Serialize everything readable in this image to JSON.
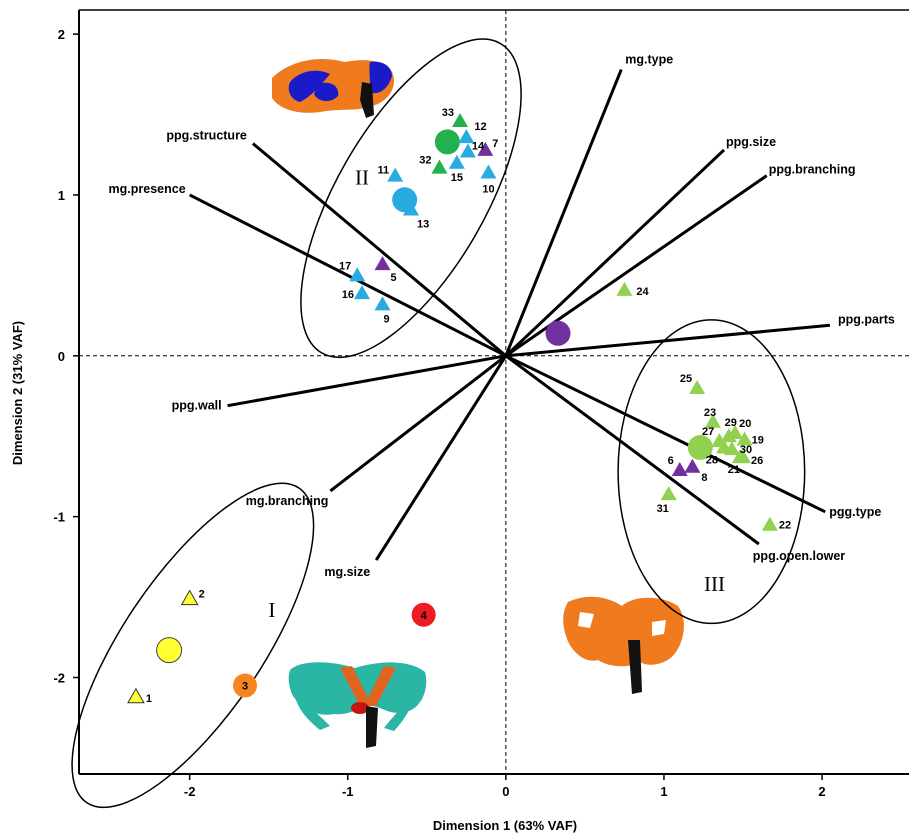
{
  "chart_data": {
    "type": "scatter",
    "xlabel": "Dimension 1 (63% VAF)",
    "ylabel": "Dimension 2 (31% VAF)",
    "xlim": [
      -2.7,
      2.55
    ],
    "ylim": [
      -2.6,
      2.15
    ],
    "xticks": [
      -2,
      -1,
      0,
      1,
      2
    ],
    "yticks": [
      -2,
      -1,
      0,
      1,
      2
    ],
    "grid": false,
    "vectors": [
      {
        "label": "mg.type",
        "x": 0.73,
        "y": 1.78
      },
      {
        "label": "ppg.size",
        "x": 1.38,
        "y": 1.28
      },
      {
        "label": "ppg.branching",
        "x": 1.65,
        "y": 1.12
      },
      {
        "label": "ppg.parts",
        "x": 2.05,
        "y": 0.19
      },
      {
        "label": "pgg.type",
        "x": 2.02,
        "y": -0.97
      },
      {
        "label": "ppg.open.lower",
        "x": 1.6,
        "y": -1.17
      },
      {
        "label": "mg.size",
        "x": -0.82,
        "y": -1.27
      },
      {
        "label": "mg.branching",
        "x": -1.11,
        "y": -0.84
      },
      {
        "label": "ppg.wall",
        "x": -1.76,
        "y": -0.31
      },
      {
        "label": "mg.presence",
        "x": -2.0,
        "y": 1.0
      },
      {
        "label": "ppg.structure",
        "x": -1.6,
        "y": 1.32
      }
    ],
    "points": [
      {
        "id": "1",
        "x": -2.34,
        "y": -2.12,
        "color": "#ffff33"
      },
      {
        "id": "2",
        "x": -2.0,
        "y": -1.51,
        "color": "#ffff33"
      },
      {
        "id": "5",
        "x": -0.78,
        "y": 0.57,
        "color": "#7030a0"
      },
      {
        "id": "6",
        "x": 1.1,
        "y": -0.71,
        "color": "#7030a0"
      },
      {
        "id": "7",
        "x": -0.13,
        "y": 1.28,
        "color": "#7030a0"
      },
      {
        "id": "8",
        "x": 1.18,
        "y": -0.69,
        "color": "#7030a0"
      },
      {
        "id": "9",
        "x": -0.78,
        "y": 0.32,
        "color": "#29abe2"
      },
      {
        "id": "10",
        "x": -0.11,
        "y": 1.14,
        "color": "#29abe2"
      },
      {
        "id": "11",
        "x": -0.7,
        "y": 1.12,
        "color": "#29abe2"
      },
      {
        "id": "12",
        "x": -0.25,
        "y": 1.36,
        "color": "#29abe2"
      },
      {
        "id": "13",
        "x": -0.6,
        "y": 0.91,
        "color": "#29abe2"
      },
      {
        "id": "14",
        "x": -0.24,
        "y": 1.27,
        "color": "#29abe2"
      },
      {
        "id": "15",
        "x": -0.31,
        "y": 1.2,
        "color": "#29abe2"
      },
      {
        "id": "16",
        "x": -0.91,
        "y": 0.39,
        "color": "#29abe2"
      },
      {
        "id": "17",
        "x": -0.94,
        "y": 0.5,
        "color": "#29abe2"
      },
      {
        "id": "19",
        "x": 1.51,
        "y": -0.52,
        "color": "#92d050"
      },
      {
        "id": "20",
        "x": 1.45,
        "y": -0.48,
        "color": "#92d050"
      },
      {
        "id": "21",
        "x": 1.48,
        "y": -0.63,
        "color": "#92d050"
      },
      {
        "id": "22",
        "x": 1.67,
        "y": -1.05,
        "color": "#92d050"
      },
      {
        "id": "23",
        "x": 1.31,
        "y": -0.41,
        "color": "#92d050"
      },
      {
        "id": "24",
        "x": 0.75,
        "y": 0.41,
        "color": "#92d050"
      },
      {
        "id": "25",
        "x": 1.21,
        "y": -0.2,
        "color": "#92d050"
      },
      {
        "id": "26",
        "x": 1.5,
        "y": -0.63,
        "color": "#92d050"
      },
      {
        "id": "27",
        "x": 1.35,
        "y": -0.53,
        "color": "#92d050"
      },
      {
        "id": "28",
        "x": 1.38,
        "y": -0.57,
        "color": "#92d050"
      },
      {
        "id": "29",
        "x": 1.41,
        "y": -0.5,
        "color": "#92d050"
      },
      {
        "id": "30",
        "x": 1.43,
        "y": -0.58,
        "color": "#92d050"
      },
      {
        "id": "31",
        "x": 1.03,
        "y": -0.86,
        "color": "#92d050"
      },
      {
        "id": "32",
        "x": -0.42,
        "y": 1.17,
        "color": "#22b14c"
      },
      {
        "id": "33",
        "x": -0.29,
        "y": 1.46,
        "color": "#22b14c"
      }
    ],
    "centroids": [
      {
        "label": "",
        "x": -2.13,
        "y": -1.83,
        "color": "#ffff33"
      },
      {
        "label": "3",
        "x": -1.65,
        "y": -2.05,
        "color": "#f7851f"
      },
      {
        "label": "4",
        "x": -0.52,
        "y": -1.61,
        "color": "#ed1c24"
      },
      {
        "label": "",
        "x": -0.64,
        "y": 0.97,
        "color": "#29abe2"
      },
      {
        "label": "",
        "x": -0.37,
        "y": 1.33,
        "color": "#22b14c"
      },
      {
        "label": "",
        "x": 0.33,
        "y": 0.14,
        "color": "#7030a0"
      },
      {
        "label": "",
        "x": 1.23,
        "y": -0.57,
        "color": "#92d050"
      }
    ],
    "groups": [
      {
        "label": "I",
        "cx": -1.98,
        "cy": -1.8,
        "rx": 1.2,
        "ry": 0.44,
        "rotate": -56,
        "label_x": -1.48,
        "label_y": -1.58
      },
      {
        "label": "II",
        "cx": -0.6,
        "cy": 0.98,
        "rx": 1.13,
        "ry": 0.47,
        "rotate": -60,
        "label_x": -0.91,
        "label_y": 1.11
      },
      {
        "label": "III",
        "cx": 1.3,
        "cy": -0.72,
        "rx": 0.59,
        "ry": 0.96,
        "rotate": 0,
        "label_x": 1.32,
        "label_y": -1.42
      }
    ],
    "annotations": [
      "3D skull rendering (orange/blue)",
      "3D skull rendering (teal/orange)",
      "3D skull rendering (orange)"
    ]
  }
}
